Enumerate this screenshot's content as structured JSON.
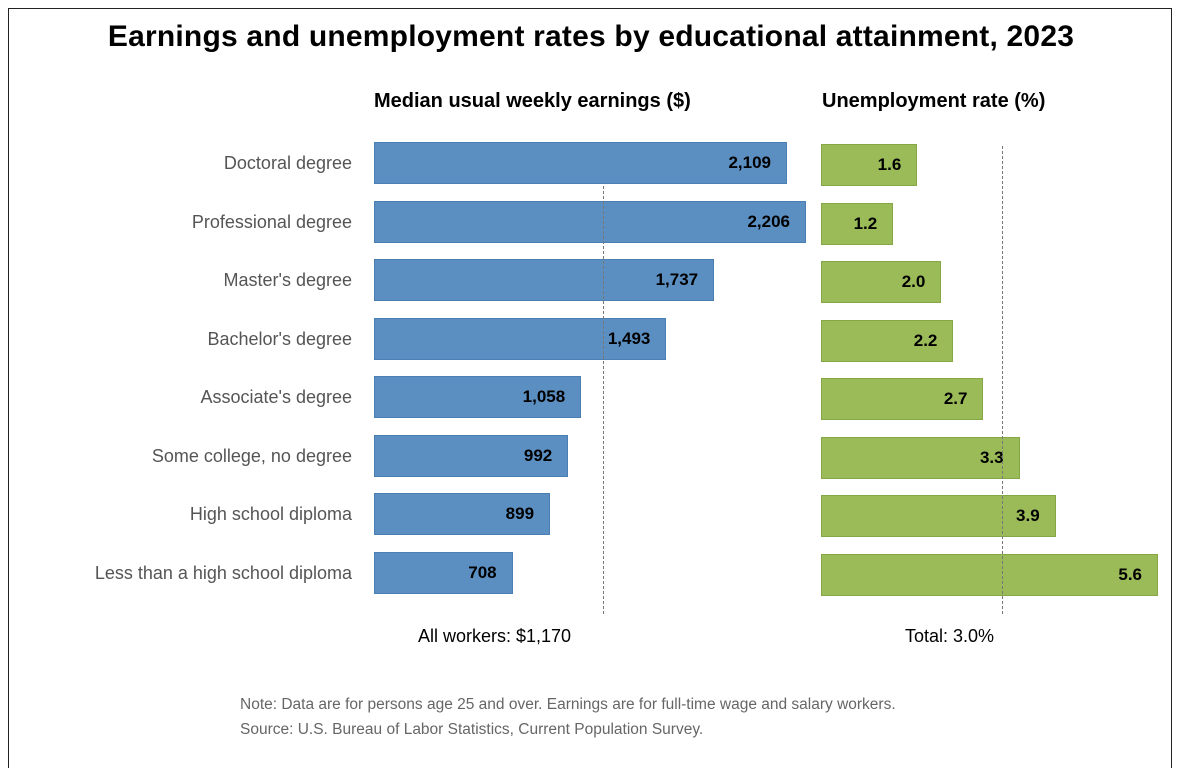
{
  "title": "Earnings and unemployment rates by educational attainment, 2023",
  "note": "Note: Data are for persons age 25 and over. Earnings are for full-time wage and salary workers.",
  "source": "Source: U.S. Bureau of Labor Statistics, Current Population Survey.",
  "colors": {
    "earnings_bar": "#5b8fc2",
    "unemployment_bar": "#9bbb59"
  },
  "chart_data": [
    {
      "type": "bar",
      "orientation": "horizontal",
      "title": "Median usual weekly earnings ($)",
      "categories": [
        "Doctoral degree",
        "Professional degree",
        "Master's degree",
        "Bachelor's degree",
        "Associate's degree",
        "Some college, no degree",
        "High school diploma",
        "Less than a high school diploma"
      ],
      "values": [
        2109,
        2206,
        1737,
        1493,
        1058,
        992,
        899,
        708
      ],
      "value_labels": [
        "2,109",
        "2,206",
        "1,737",
        "1,493",
        "1,058",
        "992",
        "899",
        "708"
      ],
      "reference_value": 1170,
      "reference_label": "All workers: $1,170",
      "xlim": [
        0,
        2206
      ]
    },
    {
      "type": "bar",
      "orientation": "horizontal",
      "title": "Unemployment rate (%)",
      "categories": [
        "Doctoral degree",
        "Professional degree",
        "Master's degree",
        "Bachelor's degree",
        "Associate's degree",
        "Some college, no degree",
        "High school diploma",
        "Less than a high school diploma"
      ],
      "values": [
        1.6,
        1.2,
        2.0,
        2.2,
        2.7,
        3.3,
        3.9,
        5.6
      ],
      "value_labels": [
        "1.6",
        "1.2",
        "2.0",
        "2.2",
        "2.7",
        "3.3",
        "3.9",
        "5.6"
      ],
      "reference_value": 3.0,
      "reference_label": "Total: 3.0%",
      "xlim": [
        0,
        5.6
      ]
    }
  ]
}
